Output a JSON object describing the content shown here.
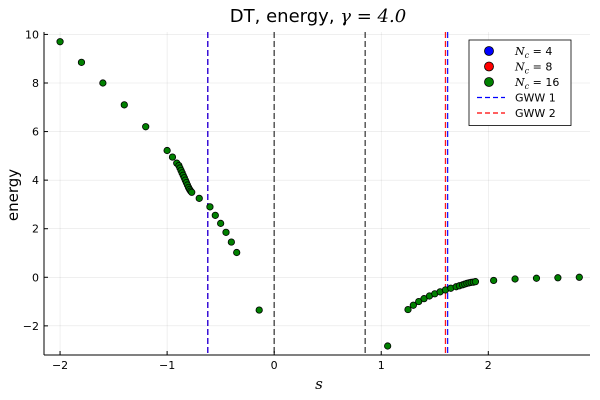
{
  "chart_data": {
    "type": "scatter",
    "title": {
      "prefix": "DT, energy, ",
      "math": "γ = 4.0"
    },
    "xlabel": "s",
    "ylabel": "energy",
    "xlim": [
      -2.15,
      2.95
    ],
    "ylim": [
      -3.2,
      10.1
    ],
    "xticks": [
      -2,
      -1,
      0,
      1,
      2
    ],
    "xtick_labels": [
      "−2",
      "−1",
      "0",
      "1",
      "2"
    ],
    "yticks": [
      -2,
      0,
      2,
      4,
      6,
      8,
      10
    ],
    "ytick_labels": [
      "−2",
      "0",
      "2",
      "4",
      "6",
      "8",
      "10"
    ],
    "grid": true,
    "legend_position": "top-right",
    "series": [
      {
        "name": "N_c = 4",
        "legend_math": "N",
        "legend_sub": "c",
        "legend_rest": " = 4",
        "color": "#0000ff",
        "x": [],
        "y": []
      },
      {
        "name": "N_c = 8",
        "legend_math": "N",
        "legend_sub": "c",
        "legend_rest": " = 8",
        "color": "#ff0000",
        "x": [],
        "y": []
      },
      {
        "name": "N_c = 16",
        "legend_math": "N",
        "legend_sub": "c",
        "legend_rest": " = 16",
        "color": "#008000",
        "x": [
          -2.0,
          -1.8,
          -1.6,
          -1.4,
          -1.2,
          -1.0,
          -0.95,
          -0.91,
          -0.89,
          -0.88,
          -0.87,
          -0.86,
          -0.85,
          -0.84,
          -0.83,
          -0.82,
          -0.81,
          -0.8,
          -0.79,
          -0.78,
          -0.77,
          -0.7,
          -0.6,
          -0.55,
          -0.5,
          -0.45,
          -0.4,
          -0.35,
          -0.14,
          1.06,
          1.25,
          1.3,
          1.35,
          1.4,
          1.45,
          1.5,
          1.55,
          1.6,
          1.65,
          1.7,
          1.73,
          1.76,
          1.78,
          1.8,
          1.82,
          1.84,
          1.86,
          1.88,
          2.05,
          2.25,
          2.45,
          2.65,
          2.85
        ],
        "y": [
          9.7,
          8.85,
          8.0,
          7.1,
          6.2,
          5.22,
          4.95,
          4.7,
          4.6,
          4.5,
          4.4,
          4.3,
          4.2,
          4.1,
          4.0,
          3.9,
          3.8,
          3.7,
          3.62,
          3.55,
          3.5,
          3.25,
          2.9,
          2.55,
          2.22,
          1.85,
          1.45,
          1.02,
          -1.35,
          -2.83,
          -1.33,
          -1.15,
          -1.0,
          -0.88,
          -0.77,
          -0.68,
          -0.6,
          -0.52,
          -0.45,
          -0.39,
          -0.35,
          -0.31,
          -0.28,
          -0.25,
          -0.23,
          -0.21,
          -0.2,
          -0.18,
          -0.13,
          -0.07,
          -0.04,
          -0.02,
          0.0
        ]
      }
    ],
    "vlines": [
      {
        "name": "GWW 1",
        "color": "#0000ff",
        "x": 1.62,
        "in_legend": true
      },
      {
        "name": "GWW 2",
        "color": "#ff0000",
        "x": 1.6,
        "in_legend": true
      },
      {
        "name": "",
        "color": "#ff0000",
        "x": -0.62,
        "in_legend": false
      },
      {
        "name": "",
        "color": "#0000ff",
        "x": -0.62,
        "in_legend": false
      },
      {
        "name": "",
        "color": "#000000",
        "x": 0.0,
        "in_legend": false
      },
      {
        "name": "",
        "color": "#000000",
        "x": 0.85,
        "in_legend": false
      }
    ]
  }
}
